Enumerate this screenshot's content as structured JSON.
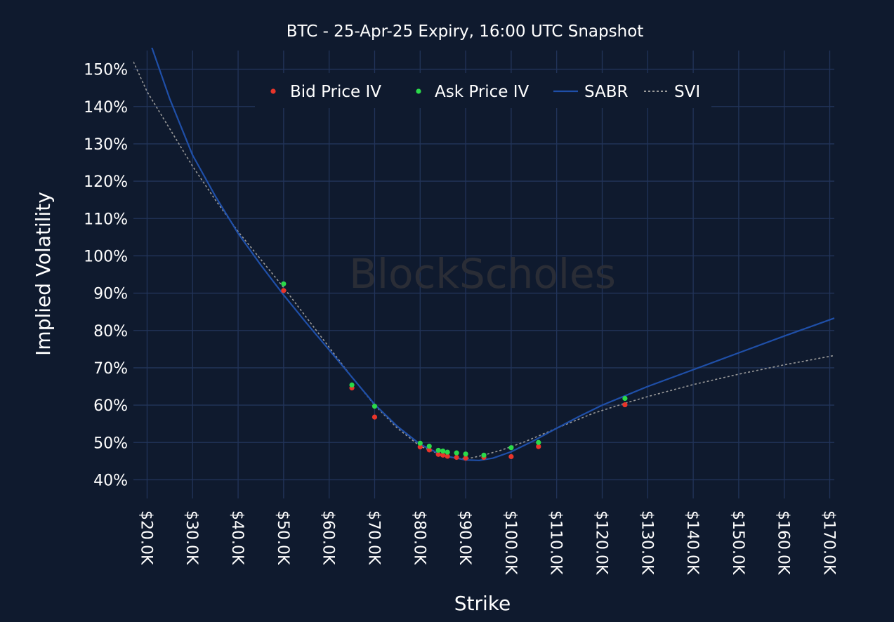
{
  "chart_data": {
    "type": "scatter",
    "title": "BTC - 25-Apr-25 Expiry, 16:00 UTC Snapshot",
    "xlabel": "Strike",
    "ylabel": "Implied Volatility",
    "watermark": "BlockScholes",
    "xlim": [
      17000,
      171000
    ],
    "ylim": [
      35,
      155
    ],
    "x_ticks": [
      20000,
      30000,
      40000,
      50000,
      60000,
      70000,
      80000,
      90000,
      100000,
      110000,
      120000,
      130000,
      140000,
      150000,
      160000,
      170000
    ],
    "x_tick_labels": [
      "$20.0K",
      "$30.0K",
      "$40.0K",
      "$50.0K",
      "$60.0K",
      "$70.0K",
      "$80.0K",
      "$90.0K",
      "$100.0K",
      "$110.0K",
      "$120.0K",
      "$130.0K",
      "$140.0K",
      "$150.0K",
      "$160.0K",
      "$170.0K"
    ],
    "y_ticks": [
      40,
      50,
      60,
      70,
      80,
      90,
      100,
      110,
      120,
      130,
      140,
      150
    ],
    "y_tick_labels": [
      "40%",
      "50%",
      "60%",
      "70%",
      "80%",
      "90%",
      "100%",
      "110%",
      "120%",
      "130%",
      "140%",
      "150%"
    ],
    "grid": true,
    "legend_position": "top-center",
    "colors": {
      "background": "#0f1a2e",
      "grid": "#22345a",
      "text": "#ffffff",
      "bid": "#e8352a",
      "ask": "#2bd94a",
      "sabr": "#1f4fa8",
      "svi": "#9a9a9a",
      "watermark": "#2a2d36"
    },
    "series": [
      {
        "name": "Bid Price IV",
        "kind": "scatter",
        "x": [
          50000,
          65000,
          70000,
          80000,
          82000,
          84000,
          85000,
          86000,
          88000,
          90000,
          94000,
          100000,
          106000,
          125000
        ],
        "y": [
          90.7,
          64.6,
          56.8,
          48.8,
          48.0,
          46.8,
          46.6,
          46.3,
          46.0,
          45.8,
          46.0,
          46.2,
          48.9,
          60.1
        ]
      },
      {
        "name": "Ask Price IV",
        "kind": "scatter",
        "x": [
          50000,
          65000,
          70000,
          80000,
          82000,
          84000,
          85000,
          86000,
          88000,
          90000,
          94000,
          100000,
          106000,
          125000
        ],
        "y": [
          92.5,
          65.4,
          59.7,
          49.8,
          49.0,
          47.9,
          47.7,
          47.4,
          47.2,
          46.9,
          46.6,
          48.6,
          50.0,
          61.8
        ]
      },
      {
        "name": "SABR",
        "kind": "line",
        "x": [
          21000,
          25000,
          30000,
          35000,
          40000,
          45000,
          50000,
          55000,
          60000,
          65000,
          70000,
          75000,
          80000,
          85000,
          90000,
          93000,
          96000,
          100000,
          105000,
          110000,
          115000,
          120000,
          125000,
          130000,
          140000,
          150000,
          160000,
          171000
        ],
        "y": [
          156,
          142,
          127,
          116,
          106,
          97.5,
          89.5,
          82.0,
          74.8,
          67.5,
          60.2,
          54.3,
          49.5,
          46.5,
          45.3,
          45.2,
          45.8,
          47.5,
          50.5,
          53.8,
          57.0,
          60.0,
          62.5,
          65.0,
          69.5,
          74.0,
          78.5,
          83.3
        ]
      },
      {
        "name": "SVI",
        "kind": "line",
        "x": [
          17000,
          20000,
          25000,
          30000,
          35000,
          40000,
          45000,
          50000,
          55000,
          60000,
          65000,
          70000,
          75000,
          80000,
          85000,
          88000,
          91000,
          94000,
          98000,
          103000,
          110000,
          118000,
          125000,
          130000,
          140000,
          150000,
          160000,
          171000
        ],
        "y": [
          152,
          144,
          134,
          124,
          115,
          106.5,
          99.0,
          91.5,
          83.5,
          75.5,
          67.5,
          60.0,
          53.8,
          49.0,
          46.5,
          45.7,
          45.8,
          46.6,
          48.0,
          50.2,
          53.8,
          57.8,
          60.5,
          62.3,
          65.5,
          68.3,
          70.8,
          73.3
        ]
      }
    ]
  }
}
